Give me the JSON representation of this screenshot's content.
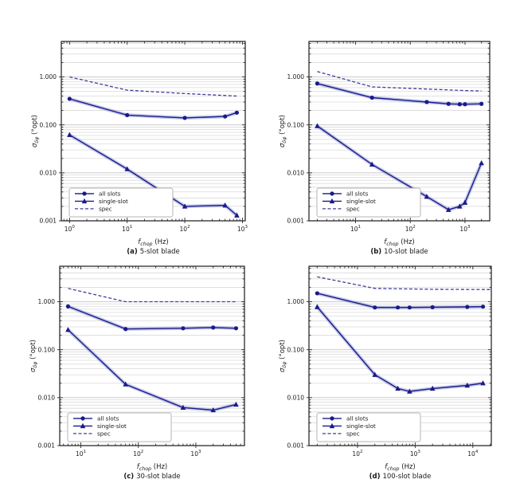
{
  "figure": {
    "background": "#ffffff",
    "legend_labels": [
      "all slots",
      "single-slot",
      "spec"
    ]
  },
  "colors": {
    "line": "#1a1a8c",
    "spec": "#3d3d9e",
    "band": "rgba(130,140,205,0.45)",
    "grid_major": "#c4c4c4",
    "grid_minor": "#dadada",
    "frame": "#2b2b2b",
    "legend_border": "#b5b5b5",
    "legend_fill": "#ffffff",
    "text": "#1a1a1a"
  },
  "chart_data": [
    {
      "id": "a",
      "type": "line",
      "caption": {
        "tag": "(a)",
        "text": "5-slot blade"
      },
      "xlabel": {
        "var": "f",
        "sub": "chop",
        "unit": " (Hz)"
      },
      "ylabel": {
        "var": "σ",
        "sub": "δφ",
        "unit": " (°opt)"
      },
      "xscale": "log",
      "yscale": "log",
      "xlim": [
        0.72,
        1120
      ],
      "ylim": [
        0.001,
        5.5
      ],
      "x_major_ticks": [
        1,
        10,
        100,
        1000
      ],
      "y_major_ticks": [
        1.0,
        0.1,
        0.01,
        0.001
      ],
      "grid": "horizontal major+minor",
      "legend_position": "lower-left",
      "series": [
        {
          "name": "all slots",
          "marker": "circle",
          "line": "solid",
          "band": true,
          "x": [
            1,
            10,
            100,
            500,
            800
          ],
          "y": [
            0.35,
            0.16,
            0.14,
            0.15,
            0.18
          ]
        },
        {
          "name": "single-slot",
          "marker": "triangle",
          "line": "solid",
          "band": true,
          "x": [
            1,
            10,
            100,
            500,
            800
          ],
          "y": [
            0.062,
            0.012,
            0.002,
            0.0021,
            0.0013
          ]
        },
        {
          "name": "spec",
          "marker": "none",
          "line": "dashed",
          "band": false,
          "x": [
            1,
            10,
            100,
            500,
            800
          ],
          "y": [
            1.0,
            0.53,
            0.45,
            0.41,
            0.4
          ]
        }
      ]
    },
    {
      "id": "b",
      "type": "line",
      "caption": {
        "tag": "(b)",
        "text": "10-slot blade"
      },
      "xlabel": {
        "var": "f",
        "sub": "chop",
        "unit": " (Hz)"
      },
      "ylabel": {
        "var": "σ",
        "sub": "δφ",
        "unit": " (°opt)"
      },
      "xscale": "log",
      "yscale": "log",
      "xlim": [
        1.41,
        2830
      ],
      "ylim": [
        0.001,
        5.5
      ],
      "x_major_ticks": [
        10,
        100,
        1000
      ],
      "y_major_ticks": [
        1.0,
        0.1,
        0.01,
        0.001
      ],
      "grid": "horizontal major+minor",
      "legend_position": "lower-left",
      "series": [
        {
          "name": "all slots",
          "marker": "circle",
          "line": "solid",
          "band": true,
          "x": [
            2,
            20,
            200,
            500,
            800,
            1000,
            2000
          ],
          "y": [
            0.73,
            0.37,
            0.3,
            0.275,
            0.27,
            0.27,
            0.275
          ]
        },
        {
          "name": "single-slot",
          "marker": "triangle",
          "line": "solid",
          "band": true,
          "x": [
            2,
            20,
            200,
            500,
            800,
            1000,
            2000
          ],
          "y": [
            0.095,
            0.015,
            0.0032,
            0.0017,
            0.002,
            0.0024,
            0.016
          ]
        },
        {
          "name": "spec",
          "marker": "none",
          "line": "dashed",
          "band": false,
          "x": [
            2,
            20,
            200,
            1000,
            2000
          ],
          "y": [
            1.3,
            0.62,
            0.56,
            0.52,
            0.51
          ]
        }
      ]
    },
    {
      "id": "c",
      "type": "line",
      "caption": {
        "tag": "(c)",
        "text": "30-slot blade"
      },
      "xlabel": {
        "var": "f",
        "sub": "chop",
        "unit": " (Hz)"
      },
      "ylabel": {
        "var": "σ",
        "sub": "δφ",
        "unit": " (°opt)"
      },
      "xscale": "log",
      "yscale": "log",
      "xlim": [
        4.3,
        7000
      ],
      "ylim": [
        0.001,
        5.5
      ],
      "x_major_ticks": [
        10,
        100,
        1000
      ],
      "y_major_ticks": [
        1.0,
        0.1,
        0.01,
        0.001
      ],
      "grid": "horizontal major+minor",
      "legend_position": "lower-left",
      "series": [
        {
          "name": "all slots",
          "marker": "circle",
          "line": "solid",
          "band": true,
          "x": [
            6,
            60,
            600,
            2000,
            5000
          ],
          "y": [
            0.8,
            0.27,
            0.28,
            0.29,
            0.28
          ]
        },
        {
          "name": "single-slot",
          "marker": "triangle",
          "line": "solid",
          "band": true,
          "x": [
            6,
            60,
            600,
            2000,
            5000
          ],
          "y": [
            0.26,
            0.019,
            0.0062,
            0.0055,
            0.0072
          ]
        },
        {
          "name": "spec",
          "marker": "none",
          "line": "dashed",
          "band": false,
          "x": [
            6,
            60,
            600,
            5000
          ],
          "y": [
            1.9,
            1.0,
            1.0,
            1.0
          ]
        }
      ]
    },
    {
      "id": "d",
      "type": "line",
      "caption": {
        "tag": "(d)",
        "text": "100-slot blade"
      },
      "xlabel": {
        "var": "f",
        "sub": "chop",
        "unit": " (Hz)"
      },
      "ylabel": {
        "var": "σ",
        "sub": "δφ",
        "unit": " (°opt)"
      },
      "xscale": "log",
      "yscale": "log",
      "xlim": [
        14.4,
        20900
      ],
      "ylim": [
        0.001,
        5.5
      ],
      "x_major_ticks": [
        100,
        1000,
        10000
      ],
      "y_major_ticks": [
        1.0,
        0.1,
        0.01,
        0.001
      ],
      "grid": "horizontal major+minor",
      "legend_position": "lower-left",
      "series": [
        {
          "name": "all slots",
          "marker": "circle",
          "line": "solid",
          "band": true,
          "x": [
            20,
            200,
            500,
            800,
            2000,
            8000,
            15000
          ],
          "y": [
            1.5,
            0.76,
            0.76,
            0.76,
            0.77,
            0.78,
            0.79
          ]
        },
        {
          "name": "single-slot",
          "marker": "triangle",
          "line": "solid",
          "band": true,
          "x": [
            20,
            200,
            500,
            800,
            2000,
            8000,
            15000
          ],
          "y": [
            0.78,
            0.03,
            0.0155,
            0.0135,
            0.0155,
            0.018,
            0.02
          ]
        },
        {
          "name": "spec",
          "marker": "none",
          "line": "dashed",
          "band": false,
          "x": [
            20,
            200,
            2000,
            20000
          ],
          "y": [
            3.3,
            1.9,
            1.82,
            1.8
          ]
        }
      ]
    }
  ]
}
